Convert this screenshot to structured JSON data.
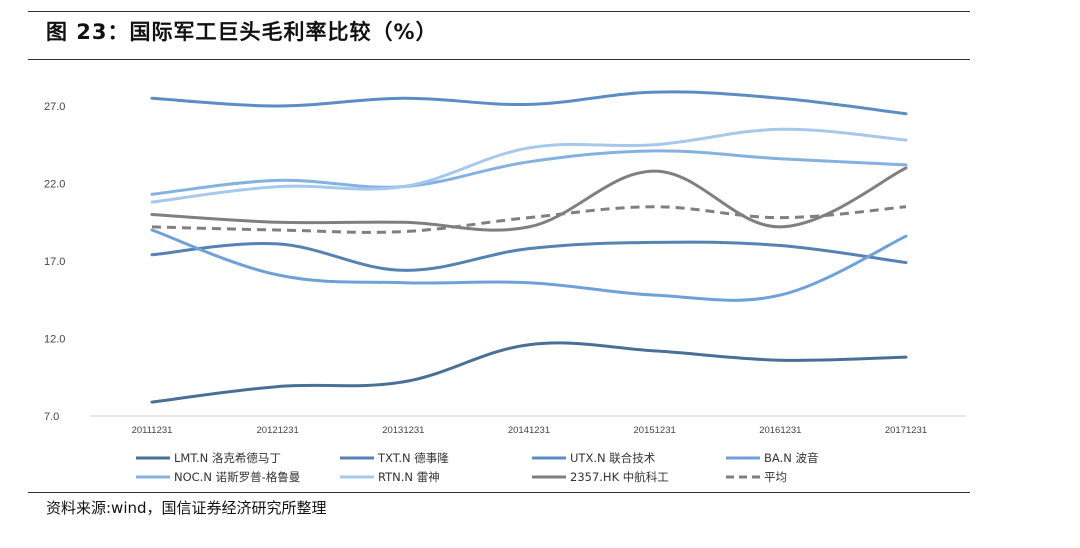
{
  "page": {
    "title": "图 23：国际军工巨头毛利率比较（%）",
    "source": "资料来源:wind，国信证券经济研究所整理"
  },
  "chart_data": {
    "type": "line",
    "title": "",
    "xlabel": "",
    "ylabel": "",
    "ylim": [
      7.0,
      29.0
    ],
    "yticks": [
      "27.0",
      "22.0",
      "17.0",
      "12.0",
      "7.0"
    ],
    "ytick_values": [
      27,
      22,
      17,
      12,
      7
    ],
    "categories": [
      "20111231",
      "20121231",
      "20131231",
      "20141231",
      "20151231",
      "20161231",
      "20171231"
    ],
    "grid": false,
    "legend_position": "bottom",
    "series": [
      {
        "name": "LMT.N 洛克希德马丁",
        "color": "#4a6f96",
        "dash": "solid",
        "values": [
          7.9,
          8.9,
          9.2,
          11.6,
          11.2,
          10.6,
          10.8
        ]
      },
      {
        "name": "TXT.N 德事隆",
        "color": "#5482b3",
        "dash": "solid",
        "values": [
          17.4,
          18.1,
          16.4,
          17.8,
          18.2,
          18.0,
          16.9
        ]
      },
      {
        "name": "UTX.N 联合技术",
        "color": "#5b8dc4",
        "dash": "solid",
        "values": [
          27.5,
          27.0,
          27.5,
          27.1,
          27.9,
          27.5,
          26.5
        ]
      },
      {
        "name": "BA.N 波音",
        "color": "#6da1d8",
        "dash": "solid",
        "values": [
          19.0,
          16.1,
          15.6,
          15.6,
          14.8,
          14.8,
          18.6
        ]
      },
      {
        "name": "NOC.N 诺斯罗普-格鲁曼",
        "color": "#84b2e0",
        "dash": "solid",
        "values": [
          21.3,
          22.2,
          21.8,
          23.4,
          24.1,
          23.6,
          23.2
        ]
      },
      {
        "name": "RTN.N 雷神",
        "color": "#a6c8ec",
        "dash": "solid",
        "values": [
          20.8,
          21.8,
          21.8,
          24.3,
          24.5,
          25.5,
          24.8
        ]
      },
      {
        "name": "2357.HK 中航科工",
        "color": "#7f7f7f",
        "dash": "solid",
        "values": [
          20.0,
          19.5,
          19.5,
          19.2,
          22.8,
          19.2,
          23.0
        ]
      },
      {
        "name": "平均",
        "color": "#7f7f7f",
        "dash": "dashed",
        "values": [
          19.2,
          19.0,
          18.9,
          19.8,
          20.5,
          19.8,
          20.5
        ]
      }
    ]
  }
}
